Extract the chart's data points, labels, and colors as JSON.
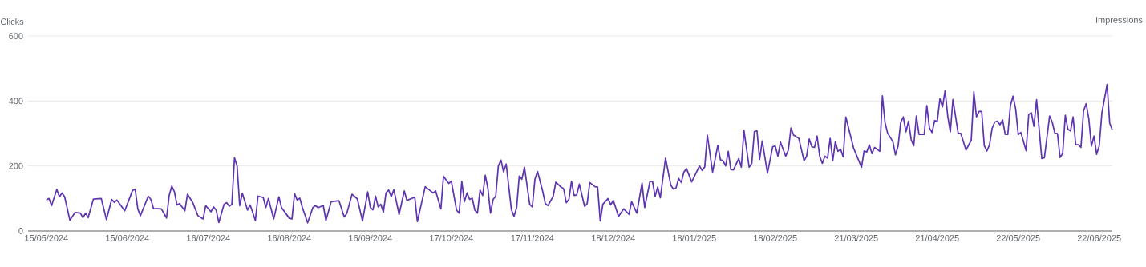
{
  "chart_data": {
    "type": "line",
    "ylabel": "Clicks",
    "y2label": "Impressions",
    "color": "#5e35b1",
    "grid": "y",
    "xlim": [
      "2024-05-08",
      "2025-06-27"
    ],
    "ylim": [
      0,
      600
    ],
    "yticks": [
      0,
      200,
      400,
      600
    ],
    "xticks": [
      {
        "value": "2024-05-15",
        "label": "15/05/2024"
      },
      {
        "value": "2024-06-15",
        "label": "15/06/2024"
      },
      {
        "value": "2024-07-16",
        "label": "16/07/2024"
      },
      {
        "value": "2024-08-16",
        "label": "16/08/2024"
      },
      {
        "value": "2024-09-16",
        "label": "16/09/2024"
      },
      {
        "value": "2024-10-17",
        "label": "17/10/2024"
      },
      {
        "value": "2024-11-17",
        "label": "17/11/2024"
      },
      {
        "value": "2024-12-18",
        "label": "18/12/2024"
      },
      {
        "value": "2025-01-18",
        "label": "18/01/2025"
      },
      {
        "value": "2025-02-18",
        "label": "18/02/2025"
      },
      {
        "value": "2025-03-21",
        "label": "21/03/2025"
      },
      {
        "value": "2025-04-21",
        "label": "21/04/2025"
      },
      {
        "value": "2025-05-22",
        "label": "22/05/2025"
      },
      {
        "value": "2025-06-22",
        "label": "22/06/2025"
      }
    ],
    "x": [
      "2024-05-15",
      "2024-05-16",
      "2024-05-17",
      "2024-05-19",
      "2024-05-20",
      "2024-05-21",
      "2024-05-22",
      "2024-05-24",
      "2024-05-26",
      "2024-05-28",
      "2024-05-29",
      "2024-05-30",
      "2024-05-31",
      "2024-06-02",
      "2024-06-05",
      "2024-06-07",
      "2024-06-09",
      "2024-06-10",
      "2024-06-11",
      "2024-06-14",
      "2024-06-17",
      "2024-06-18",
      "2024-06-19",
      "2024-06-20",
      "2024-06-23",
      "2024-06-24",
      "2024-06-25",
      "2024-06-28",
      "2024-06-30",
      "2024-07-01",
      "2024-07-02",
      "2024-07-03",
      "2024-07-04",
      "2024-07-05",
      "2024-07-07",
      "2024-07-08",
      "2024-07-10",
      "2024-07-12",
      "2024-07-14",
      "2024-07-15",
      "2024-07-17",
      "2024-07-18",
      "2024-07-19",
      "2024-07-20",
      "2024-07-22",
      "2024-07-23",
      "2024-07-24",
      "2024-07-25",
      "2024-07-26",
      "2024-07-27",
      "2024-07-28",
      "2024-07-29",
      "2024-07-31",
      "2024-08-01",
      "2024-08-03",
      "2024-08-04",
      "2024-08-06",
      "2024-08-07",
      "2024-08-08",
      "2024-08-10",
      "2024-08-12",
      "2024-08-13",
      "2024-08-16",
      "2024-08-17",
      "2024-08-18",
      "2024-08-19",
      "2024-08-20",
      "2024-08-21",
      "2024-08-23",
      "2024-08-25",
      "2024-08-26",
      "2024-08-27",
      "2024-08-29",
      "2024-08-30",
      "2024-09-01",
      "2024-09-04",
      "2024-09-06",
      "2024-09-07",
      "2024-09-09",
      "2024-09-11",
      "2024-09-13",
      "2024-09-15",
      "2024-09-16",
      "2024-09-17",
      "2024-09-18",
      "2024-09-19",
      "2024-09-20",
      "2024-09-21",
      "2024-09-22",
      "2024-09-23",
      "2024-09-24",
      "2024-09-25",
      "2024-09-27",
      "2024-09-29",
      "2024-09-30",
      "2024-10-03",
      "2024-10-04",
      "2024-10-07",
      "2024-10-10",
      "2024-10-11",
      "2024-10-13",
      "2024-10-14",
      "2024-10-16",
      "2024-10-17",
      "2024-10-19",
      "2024-10-20",
      "2024-10-21",
      "2024-10-22",
      "2024-10-23",
      "2024-10-24",
      "2024-10-25",
      "2024-10-26",
      "2024-10-27",
      "2024-10-28",
      "2024-10-29",
      "2024-10-30",
      "2024-10-31",
      "2024-11-01",
      "2024-11-02",
      "2024-11-03",
      "2024-11-04",
      "2024-11-05",
      "2024-11-06",
      "2024-11-07",
      "2024-11-09",
      "2024-11-10",
      "2024-11-11",
      "2024-11-12",
      "2024-11-13",
      "2024-11-14",
      "2024-11-16",
      "2024-11-17",
      "2024-11-18",
      "2024-11-19",
      "2024-11-21",
      "2024-11-22",
      "2024-11-23",
      "2024-11-25",
      "2024-11-26",
      "2024-11-28",
      "2024-11-29",
      "2024-11-30",
      "2024-12-01",
      "2024-12-02",
      "2024-12-03",
      "2024-12-04",
      "2024-12-05",
      "2024-12-07",
      "2024-12-08",
      "2024-12-09",
      "2024-12-11",
      "2024-12-12",
      "2024-12-13",
      "2024-12-14",
      "2024-12-16",
      "2024-12-17",
      "2024-12-18",
      "2024-12-20",
      "2024-12-22",
      "2024-12-24",
      "2024-12-25",
      "2024-12-27",
      "2024-12-29",
      "2024-12-30",
      "2025-01-01",
      "2025-01-02",
      "2025-01-03",
      "2025-01-04",
      "2025-01-05",
      "2025-01-07",
      "2025-01-09",
      "2025-01-10",
      "2025-01-11",
      "2025-01-12",
      "2025-01-13",
      "2025-01-14",
      "2025-01-15",
      "2025-01-17",
      "2025-01-20",
      "2025-01-21",
      "2025-01-22",
      "2025-01-23",
      "2025-01-25",
      "2025-01-27",
      "2025-01-28",
      "2025-01-29",
      "2025-01-30",
      "2025-01-31",
      "2025-02-01",
      "2025-02-02",
      "2025-02-04",
      "2025-02-05",
      "2025-02-06",
      "2025-02-08",
      "2025-02-09",
      "2025-02-10",
      "2025-02-11",
      "2025-02-12",
      "2025-02-13",
      "2025-02-15",
      "2025-02-17",
      "2025-02-18",
      "2025-02-19",
      "2025-02-20",
      "2025-02-22",
      "2025-02-23",
      "2025-02-24",
      "2025-02-25",
      "2025-02-27",
      "2025-03-01",
      "2025-03-02",
      "2025-03-03",
      "2025-03-04",
      "2025-03-05",
      "2025-03-06",
      "2025-03-07",
      "2025-03-08",
      "2025-03-09",
      "2025-03-10",
      "2025-03-11",
      "2025-03-12",
      "2025-03-13",
      "2025-03-14",
      "2025-03-15",
      "2025-03-16",
      "2025-03-17",
      "2025-03-20",
      "2025-03-23",
      "2025-03-24",
      "2025-03-25",
      "2025-03-26",
      "2025-03-27",
      "2025-03-28",
      "2025-03-30",
      "2025-03-31",
      "2025-04-01",
      "2025-04-02",
      "2025-04-04",
      "2025-04-05",
      "2025-04-06",
      "2025-04-07",
      "2025-04-08",
      "2025-04-09",
      "2025-04-10",
      "2025-04-11",
      "2025-04-12",
      "2025-04-13",
      "2025-04-14",
      "2025-04-16",
      "2025-04-17",
      "2025-04-18",
      "2025-04-19",
      "2025-04-20",
      "2025-04-21",
      "2025-04-22",
      "2025-04-23",
      "2025-04-24",
      "2025-04-25",
      "2025-04-26",
      "2025-04-27",
      "2025-04-29",
      "2025-04-30",
      "2025-05-02",
      "2025-05-04",
      "2025-05-05",
      "2025-05-06",
      "2025-05-07",
      "2025-05-08",
      "2025-05-09",
      "2025-05-10",
      "2025-05-11",
      "2025-05-12",
      "2025-05-13",
      "2025-05-14",
      "2025-05-15",
      "2025-05-16",
      "2025-05-17",
      "2025-05-18",
      "2025-05-19",
      "2025-05-20",
      "2025-05-21",
      "2025-05-22",
      "2025-05-23",
      "2025-05-25",
      "2025-05-26",
      "2025-05-27",
      "2025-05-28",
      "2025-05-29",
      "2025-05-31",
      "2025-06-01",
      "2025-06-03",
      "2025-06-04",
      "2025-06-05",
      "2025-06-06",
      "2025-06-07",
      "2025-06-08",
      "2025-06-09",
      "2025-06-10",
      "2025-06-11",
      "2025-06-12",
      "2025-06-13",
      "2025-06-14",
      "2025-06-15",
      "2025-06-16",
      "2025-06-17",
      "2025-06-18",
      "2025-06-19",
      "2025-06-20",
      "2025-06-21",
      "2025-06-22",
      "2025-06-23",
      "2025-06-25",
      "2025-06-26",
      "2025-06-27"
    ],
    "values": [
      95,
      100,
      78,
      128,
      105,
      117,
      105,
      33,
      57,
      55,
      41,
      55,
      41,
      98,
      100,
      35,
      97,
      88,
      95,
      62,
      125,
      128,
      68,
      47,
      107,
      97,
      69,
      68,
      40,
      109,
      138,
      121,
      80,
      84,
      62,
      113,
      88,
      47,
      37,
      78,
      59,
      74,
      64,
      26,
      82,
      87,
      76,
      82,
      225,
      200,
      78,
      116,
      64,
      80,
      32,
      107,
      103,
      72,
      100,
      37,
      105,
      72,
      39,
      37,
      115,
      95,
      101,
      72,
      25,
      72,
      78,
      72,
      78,
      32,
      90,
      93,
      43,
      54,
      113,
      99,
      31,
      120,
      72,
      65,
      107,
      74,
      82,
      58,
      117,
      126,
      105,
      127,
      51,
      123,
      94,
      104,
      29,
      136,
      117,
      123,
      68,
      168,
      146,
      153,
      64,
      55,
      152,
      90,
      117,
      97,
      101,
      64,
      55,
      126,
      109,
      171,
      131,
      55,
      97,
      107,
      200,
      218,
      182,
      206,
      65,
      45,
      72,
      169,
      159,
      196,
      82,
      74,
      159,
      183,
      121,
      84,
      78,
      107,
      150,
      135,
      130,
      87,
      97,
      153,
      109,
      111,
      144,
      76,
      84,
      149,
      136,
      135,
      31,
      82,
      100,
      80,
      94,
      45,
      68,
      51,
      90,
      55,
      147,
      72,
      151,
      153,
      106,
      135,
      102,
      224,
      141,
      129,
      132,
      162,
      149,
      181,
      192,
      151,
      200,
      186,
      197,
      295,
      181,
      263,
      219,
      216,
      200,
      245,
      189,
      188,
      223,
      196,
      310,
      196,
      208,
      306,
      308,
      220,
      277,
      178,
      259,
      261,
      230,
      273,
      230,
      249,
      317,
      295,
      285,
      216,
      230,
      283,
      259,
      257,
      292,
      230,
      208,
      230,
      224,
      285,
      216,
      275,
      245,
      251,
      228,
      351,
      254,
      196,
      246,
      243,
      265,
      238,
      257,
      245,
      416,
      334,
      301,
      275,
      234,
      261,
      334,
      351,
      305,
      338,
      281,
      262,
      354,
      297,
      297,
      386,
      317,
      303,
      340,
      338,
      407,
      382,
      432,
      354,
      305,
      405,
      300,
      300,
      249,
      279,
      428,
      351,
      368,
      368,
      262,
      246,
      265,
      316,
      335,
      338,
      327,
      342,
      297,
      297,
      386,
      415,
      376,
      297,
      303,
      247,
      358,
      364,
      322,
      404,
      223,
      225,
      354,
      335,
      301,
      300,
      226,
      238,
      356,
      313,
      308,
      351,
      265,
      265,
      257,
      370,
      392,
      346,
      261,
      292,
      236,
      262,
      362,
      451,
      332,
      311
    ]
  }
}
